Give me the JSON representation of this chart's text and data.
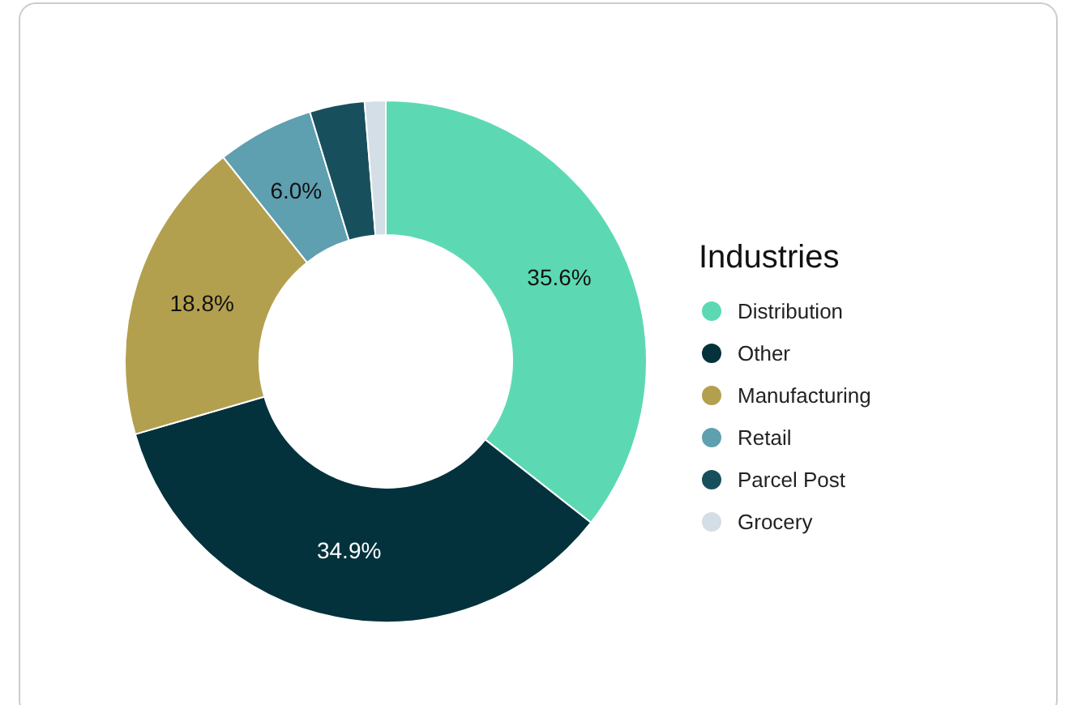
{
  "chart_data": {
    "type": "donut",
    "legend_title": "Industries",
    "legend": "right",
    "categories": [
      "Distribution",
      "Other",
      "Manufacturing",
      "Retail",
      "Parcel Post",
      "Grocery"
    ],
    "values": [
      35.6,
      34.9,
      18.8,
      6.0,
      3.4,
      1.3
    ],
    "value_labels": [
      "35.6%",
      "34.9%",
      "18.8%",
      "6.0%",
      null,
      null
    ],
    "colors": [
      "#5cd9b3",
      "#04323c",
      "#b3a04f",
      "#5e9fb0",
      "#17505c",
      "#d4dee6"
    ]
  }
}
